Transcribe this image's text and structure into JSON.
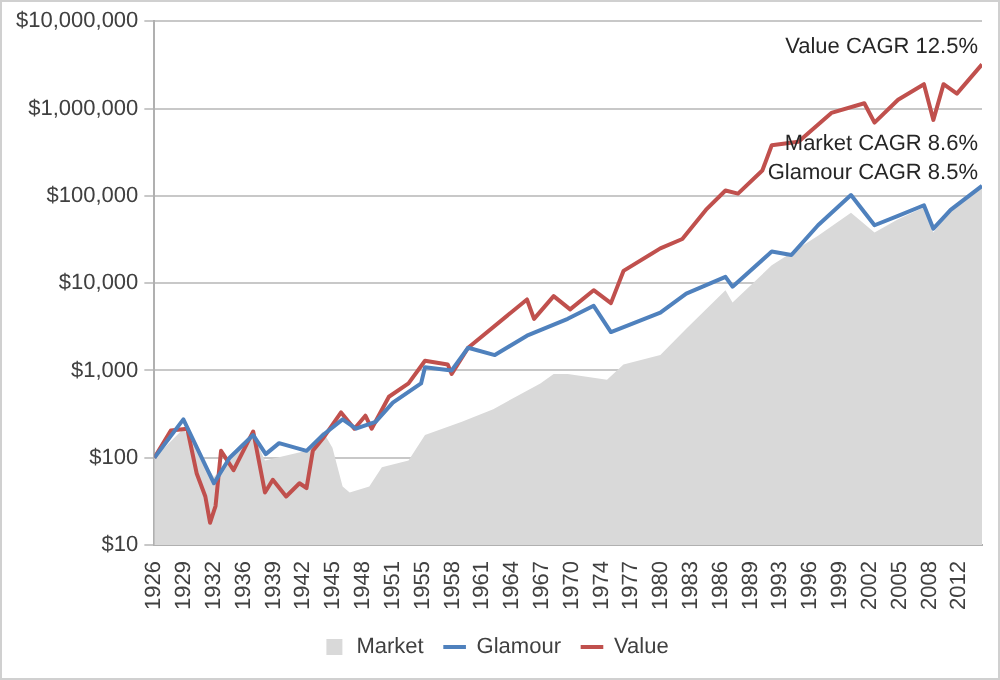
{
  "chart_data": {
    "type": "line",
    "log": "y",
    "grid": "y",
    "legend": "bottom",
    "marker": "none",
    "line_style": "solid",
    "xlim": [
      "1926-07",
      "2014-06"
    ],
    "xticks": [
      {
        "value": "1926-07",
        "label": "1926"
      },
      {
        "value": "1929-09",
        "label": "1929"
      },
      {
        "value": "1932-11",
        "label": "1932"
      },
      {
        "value": "1936-01",
        "label": "1936"
      },
      {
        "value": "1939-03",
        "label": "1939"
      },
      {
        "value": "1942-05",
        "label": "1942"
      },
      {
        "value": "1945-07",
        "label": "1945"
      },
      {
        "value": "1948-09",
        "label": "1948"
      },
      {
        "value": "1951-11",
        "label": "1951"
      },
      {
        "value": "1955-01",
        "label": "1955"
      },
      {
        "value": "1958-03",
        "label": "1958"
      },
      {
        "value": "1961-05",
        "label": "1961"
      },
      {
        "value": "1964-07",
        "label": "1964"
      },
      {
        "value": "1967-09",
        "label": "1967"
      },
      {
        "value": "1970-11",
        "label": "1970"
      },
      {
        "value": "1974-01",
        "label": "1974"
      },
      {
        "value": "1977-03",
        "label": "1977"
      },
      {
        "value": "1980-05",
        "label": "1980"
      },
      {
        "value": "1983-07",
        "label": "1983"
      },
      {
        "value": "1986-09",
        "label": "1986"
      },
      {
        "value": "1989-11",
        "label": "1989"
      },
      {
        "value": "1993-01",
        "label": "1993"
      },
      {
        "value": "1996-03",
        "label": "1996"
      },
      {
        "value": "1999-05",
        "label": "1999"
      },
      {
        "value": "2002-07",
        "label": "2002"
      },
      {
        "value": "2005-09",
        "label": "2005"
      },
      {
        "value": "2008-11",
        "label": "2008"
      },
      {
        "value": "2012-01",
        "label": "2012"
      }
    ],
    "ylim": [
      10,
      10000000
    ],
    "yticks": [
      {
        "value": 10,
        "label": "$10"
      },
      {
        "value": 100,
        "label": "$100"
      },
      {
        "value": 1000,
        "label": "$1,000"
      },
      {
        "value": 10000,
        "label": "$10,000"
      },
      {
        "value": 100000,
        "label": "$100,000"
      },
      {
        "value": 1000000,
        "label": "$1,000,000"
      },
      {
        "value": 10000000,
        "label": "$10,000,000"
      }
    ],
    "annotations": [
      "Value CAGR 12.5%",
      "Market CAGR 8.6%",
      "Glamour CAGR 8.5%"
    ],
    "series": [
      {
        "name": "Market",
        "type": "area",
        "color": "#d9d9d9",
        "x": [
          "1926-07",
          "1929-08",
          "1932-11",
          "1937-01",
          "1938-04",
          "1942-09",
          "1944-06",
          "1945-06",
          "1946-07",
          "1947-04",
          "1949-05",
          "1950-09",
          "1953-07",
          "1955-04",
          "1959-03",
          "1962-07",
          "1967-07",
          "1968-12",
          "1970-06",
          "1974-08",
          "1976-05",
          "1980-04",
          "1983-01",
          "1987-03",
          "1987-12",
          "1992-02",
          "1997-01",
          "2000-07",
          "2003-01",
          "2005-07",
          "2008-04",
          "2009-04",
          "2011-02",
          "2014-06"
        ],
        "values": [
          100,
          215,
          60,
          182,
          93,
          120,
          200,
          130,
          47,
          40,
          47,
          78,
          93,
          182,
          258,
          360,
          710,
          910,
          910,
          780,
          1170,
          1500,
          3000,
          8300,
          6000,
          16000,
          35000,
          64000,
          38000,
          54000,
          74000,
          38000,
          69000,
          130000
        ]
      },
      {
        "name": "Glamour",
        "color": "#4f81bd",
        "x": [
          "1926-07",
          "1929-08",
          "1932-11",
          "1934-07",
          "1937-01",
          "1938-05",
          "1939-10",
          "1942-09",
          "1944-06",
          "1946-07",
          "1947-12",
          "1950-01",
          "1951-11",
          "1954-11",
          "1955-04",
          "1958-02",
          "1959-11",
          "1962-09",
          "1966-02",
          "1970-06",
          "1973-03",
          "1975-01",
          "1980-04",
          "1983-01",
          "1987-03",
          "1987-12",
          "1992-02",
          "1994-03",
          "1997-01",
          "2000-07",
          "2003-01",
          "2005-07",
          "2008-04",
          "2009-04",
          "2011-02",
          "2014-06"
        ],
        "values": [
          100,
          275,
          51,
          100,
          182,
          110,
          147,
          120,
          182,
          275,
          215,
          258,
          427,
          710,
          1090,
          1000,
          1820,
          1500,
          2500,
          3900,
          5500,
          2750,
          4600,
          7600,
          11800,
          9100,
          23000,
          21000,
          46000,
          102000,
          46000,
          59000,
          78000,
          42000,
          69000,
          130000
        ]
      },
      {
        "name": "Value",
        "color": "#c0504d",
        "x": [
          "1926-07",
          "1928-04",
          "1930-01",
          "1931-01",
          "1931-12",
          "1932-06",
          "1933-01",
          "1933-08",
          "1934-12",
          "1937-01",
          "1938-04",
          "1939-02",
          "1940-07",
          "1941-12",
          "1942-09",
          "1943-05",
          "1944-06",
          "1946-05",
          "1947-10",
          "1948-12",
          "1949-08",
          "1951-06",
          "1953-07",
          "1955-04",
          "1957-09",
          "1958-02",
          "1959-11",
          "1966-02",
          "1966-11",
          "1968-12",
          "1970-09",
          "1973-03",
          "1975-01",
          "1976-05",
          "1980-04",
          "1982-08",
          "1985-02",
          "1987-03",
          "1988-07",
          "1991-02",
          "1992-02",
          "1994-12",
          "1998-06",
          "2001-12",
          "2003-01",
          "2005-07",
          "2008-04",
          "2009-04",
          "2010-05",
          "2011-10",
          "2014-06"
        ],
        "values": [
          100,
          205,
          215,
          66,
          36,
          18,
          28,
          120,
          72,
          200,
          40,
          56,
          36,
          51,
          45,
          120,
          167,
          330,
          215,
          303,
          215,
          500,
          710,
          1290,
          1170,
          910,
          1820,
          6500,
          3900,
          7100,
          5000,
          8300,
          5900,
          13800,
          25000,
          32000,
          69000,
          115000,
          106000,
          195000,
          380000,
          415000,
          890000,
          1150000,
          690000,
          1260000,
          1900000,
          740000,
          1900000,
          1480000,
          3200000
        ]
      }
    ]
  }
}
